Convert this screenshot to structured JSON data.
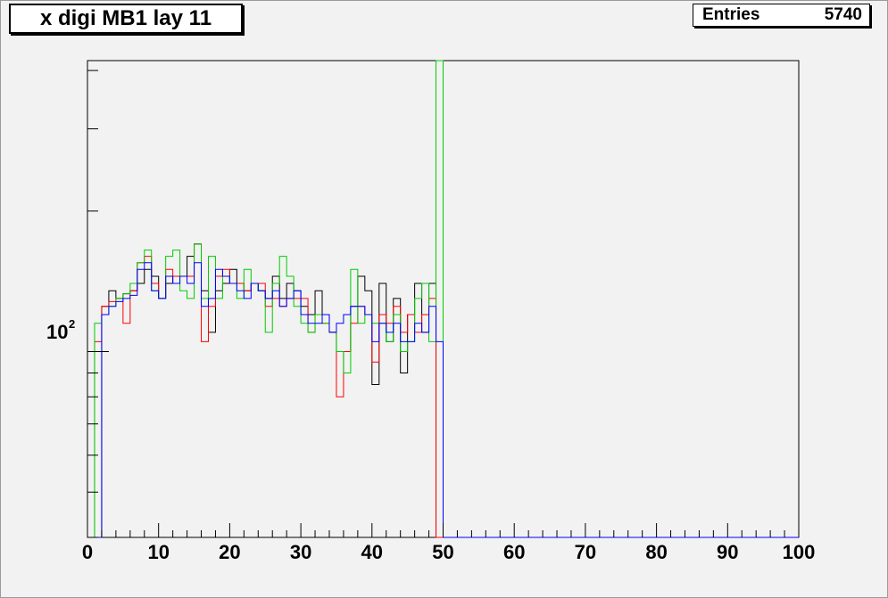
{
  "title": "x digi MB1 lay 11",
  "stats": {
    "label": "Entries",
    "value": "5740"
  },
  "chart_data": {
    "type": "line",
    "title": "x digi MB1 lay 11",
    "xlabel": "",
    "ylabel": "",
    "xlim": [
      0,
      100
    ],
    "ylim_log": [
      40,
      420
    ],
    "y_log_scale": true,
    "grid": false,
    "x_ticks": [
      "0",
      "10",
      "20",
      "30",
      "40",
      "50",
      "60",
      "70",
      "80",
      "90",
      "100"
    ],
    "y_tick_label": {
      "base": "10",
      "exponent": "2",
      "value": 100
    },
    "bin_width": 1,
    "series": [
      {
        "color": "#000000",
        "values": [
          0,
          0,
          125,
          135,
          130,
          133,
          135,
          140,
          150,
          145,
          130,
          140,
          145,
          145,
          160,
          170,
          135,
          110,
          135,
          140,
          150,
          140,
          135,
          140,
          135,
          130,
          145,
          130,
          140,
          135,
          125,
          120,
          135,
          120,
          110,
          100,
          100,
          125,
          145,
          135,
          85,
          140,
          105,
          130,
          90,
          120,
          140,
          110,
          140,
          0,
          0
        ]
      },
      {
        "color": "#ff0000",
        "values": [
          0,
          105,
          125,
          128,
          130,
          115,
          135,
          155,
          160,
          140,
          130,
          150,
          145,
          145,
          145,
          170,
          105,
          125,
          145,
          150,
          140,
          140,
          135,
          140,
          140,
          125,
          130,
          125,
          130,
          130,
          130,
          110,
          120,
          115,
          110,
          80,
          100,
          115,
          125,
          120,
          95,
          120,
          115,
          125,
          110,
          120,
          110,
          120,
          130,
          0,
          0
        ]
      },
      {
        "color": "#00cc00",
        "values": [
          0,
          115,
          120,
          125,
          130,
          133,
          140,
          155,
          165,
          135,
          130,
          160,
          165,
          135,
          130,
          170,
          130,
          160,
          130,
          145,
          140,
          130,
          150,
          140,
          135,
          110,
          140,
          160,
          145,
          125,
          115,
          110,
          120,
          115,
          110,
          100,
          90,
          150,
          115,
          120,
          115,
          115,
          105,
          120,
          100,
          105,
          130,
          140,
          105,
          420,
          0
        ]
      },
      {
        "color": "#0000ff",
        "values": [
          0,
          0,
          120,
          125,
          128,
          130,
          132,
          150,
          155,
          135,
          130,
          145,
          140,
          145,
          140,
          155,
          125,
          130,
          150,
          145,
          140,
          135,
          130,
          140,
          135,
          130,
          135,
          125,
          130,
          135,
          120,
          115,
          115,
          120,
          110,
          115,
          120,
          125,
          125,
          120,
          105,
          115,
          110,
          115,
          105,
          105,
          115,
          110,
          125,
          105,
          0
        ]
      }
    ]
  }
}
